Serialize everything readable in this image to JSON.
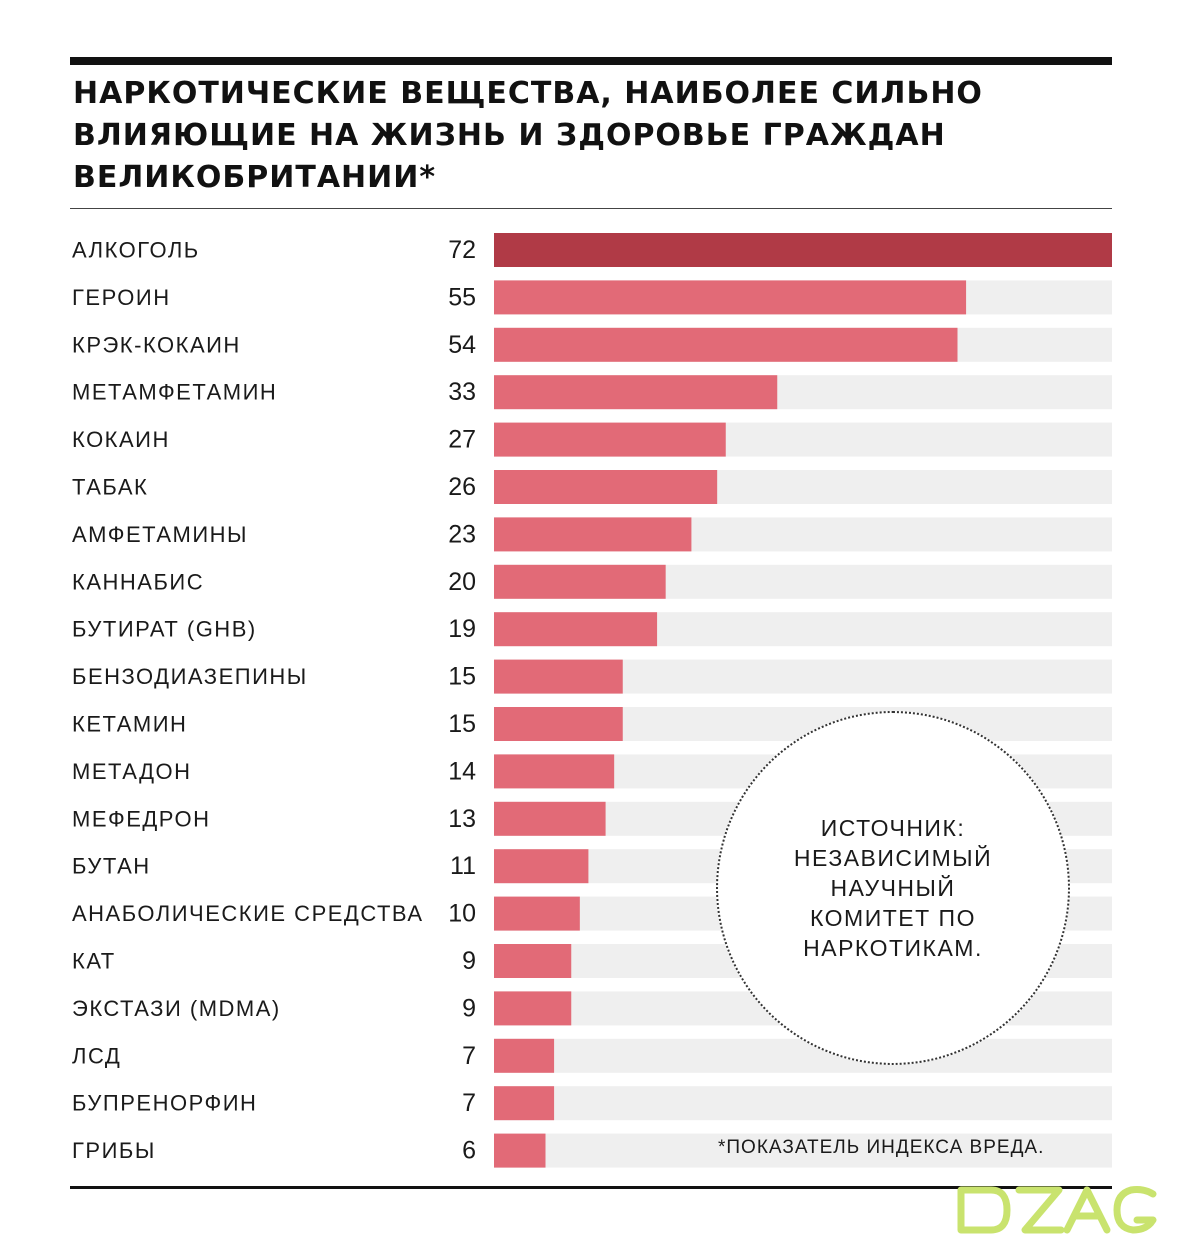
{
  "title": "НАРКОТИЧЕСКИЕ ВЕЩЕСТВА, НАИБОЛЕЕ СИЛЬНО ВЛИЯЮЩИЕ НА ЖИЗНЬ И ЗДОРОВЬЕ ГРАЖДАН ВЕЛИКОБРИТАНИИ*",
  "source_note": "ИСТОЧНИК: НЕЗАВИСИМЫЙ НАУЧНЫЙ КОМИТЕТ ПО НАРКОТИКАМ.",
  "footnote": "*ПОКАЗАТЕЛЬ ИНДЕКСА ВРЕДА.",
  "logo_text": "DZAG",
  "colors": {
    "highlight_bar": "#b03a46",
    "bar": "#e26a77",
    "track": "#efefef",
    "logo": "#c9e36e"
  },
  "chart_data": {
    "type": "bar",
    "orientation": "horizontal",
    "title": "НАРКОТИЧЕСКИЕ ВЕЩЕСТВА, НАИБОЛЕЕ СИЛЬНО ВЛИЯЮЩИЕ НА ЖИЗНЬ И ЗДОРОВЬЕ ГРАЖДАН ВЕЛИКОБРИТАНИИ*",
    "categories": [
      "АЛКОГОЛЬ",
      "ГЕРОИН",
      "КРЭК-КОКАИН",
      "МЕТАМФЕТАМИН",
      "КОКАИН",
      "ТАБАК",
      "АМФЕТАМИНЫ",
      "КАННАБИС",
      "БУТИРАТ (GHB)",
      "БЕНЗОДИАЗЕПИНЫ",
      "КЕТАМИН",
      "МЕТАДОН",
      "МЕФЕДРОН",
      "БУТАН",
      "АНАБОЛИЧЕСКИЕ СРЕДСТВА",
      "КАТ",
      "ЭКСТАЗИ (MDMA)",
      "ЛСД",
      "БУПРЕНОРФИН",
      "ГРИБЫ"
    ],
    "values": [
      72,
      55,
      54,
      33,
      27,
      26,
      23,
      20,
      19,
      15,
      15,
      14,
      13,
      11,
      10,
      9,
      9,
      7,
      7,
      6
    ],
    "xlim": [
      0,
      72
    ],
    "grid": false,
    "legend": false
  }
}
